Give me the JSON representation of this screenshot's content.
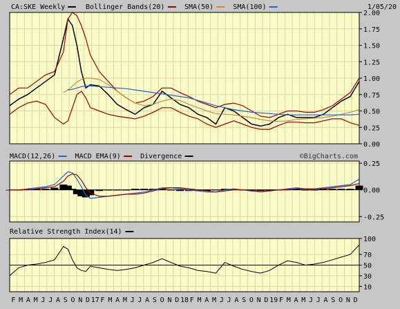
{
  "chart_data": [
    {
      "type": "line",
      "panel": "price",
      "title": "CA:SKE Weekly",
      "date": "1/05/20",
      "legend": [
        {
          "label": "Bollinger Bands(20)",
          "color": "#a00000"
        },
        {
          "label": "SMA(50)",
          "color": "#c09040"
        },
        {
          "label": "SMA(100)",
          "color": "#2060e0"
        }
      ],
      "x_range": [
        0,
        156
      ],
      "ylim": [
        0,
        2.0
      ],
      "y_ticks": [
        0,
        0.25,
        0.5,
        0.75,
        1.0,
        1.25,
        1.5,
        1.75,
        2.0
      ],
      "y_tick_labels": [
        "0.00",
        "0.25",
        "0.50",
        "0.75",
        "1.00",
        "1.25",
        "1.50",
        "1.75",
        "2.00"
      ],
      "grid": true,
      "x": [
        0,
        4,
        8,
        12,
        16,
        20,
        24,
        26,
        28,
        30,
        32,
        34,
        36,
        40,
        44,
        48,
        52,
        56,
        60,
        64,
        68,
        72,
        76,
        80,
        84,
        88,
        92,
        96,
        100,
        104,
        108,
        112,
        116,
        120,
        124,
        128,
        132,
        136,
        140,
        144,
        148,
        152,
        156
      ],
      "series": [
        {
          "name": "Price",
          "color": "#000000",
          "values": [
            0.58,
            0.68,
            0.75,
            0.85,
            0.95,
            1.05,
            1.6,
            1.9,
            1.8,
            1.5,
            1.1,
            0.85,
            0.9,
            0.88,
            0.75,
            0.6,
            0.52,
            0.45,
            0.55,
            0.6,
            0.8,
            0.7,
            0.6,
            0.55,
            0.45,
            0.4,
            0.3,
            0.55,
            0.5,
            0.4,
            0.3,
            0.27,
            0.3,
            0.4,
            0.45,
            0.4,
            0.4,
            0.4,
            0.45,
            0.55,
            0.65,
            0.72,
            0.95
          ]
        },
        {
          "name": "Upper Band",
          "color": "#a00000",
          "values": [
            0.75,
            0.85,
            0.85,
            0.95,
            1.05,
            1.1,
            1.4,
            1.9,
            2.0,
            1.95,
            1.8,
            1.6,
            1.35,
            1.1,
            0.95,
            0.8,
            0.7,
            0.62,
            0.65,
            0.72,
            0.85,
            0.85,
            0.78,
            0.72,
            0.65,
            0.6,
            0.55,
            0.6,
            0.62,
            0.58,
            0.5,
            0.42,
            0.4,
            0.45,
            0.5,
            0.5,
            0.48,
            0.48,
            0.52,
            0.58,
            0.68,
            0.78,
            1.0
          ]
        },
        {
          "name": "Lower Band",
          "color": "#a00000",
          "values": [
            0.45,
            0.55,
            0.62,
            0.65,
            0.6,
            0.4,
            0.3,
            0.35,
            0.55,
            0.75,
            0.8,
            0.7,
            0.55,
            0.5,
            0.45,
            0.42,
            0.4,
            0.38,
            0.42,
            0.48,
            0.55,
            0.55,
            0.48,
            0.42,
            0.38,
            0.3,
            0.25,
            0.3,
            0.35,
            0.3,
            0.25,
            0.22,
            0.22,
            0.28,
            0.33,
            0.33,
            0.32,
            0.32,
            0.35,
            0.38,
            0.38,
            0.32,
            0.28
          ]
        },
        {
          "name": "SMA(50)",
          "color": "#c09040",
          "values": [
            null,
            null,
            null,
            null,
            null,
            null,
            0.78,
            0.82,
            0.88,
            0.94,
            0.98,
            1.0,
            1.0,
            0.98,
            0.9,
            0.8,
            0.7,
            0.62,
            0.58,
            0.6,
            0.65,
            0.68,
            0.66,
            0.6,
            0.55,
            0.5,
            0.46,
            0.45,
            0.44,
            0.42,
            0.4,
            0.37,
            0.35,
            0.34,
            0.35,
            0.37,
            0.38,
            0.39,
            0.4,
            0.42,
            0.45,
            0.48,
            0.52
          ]
        },
        {
          "name": "SMA(100)",
          "color": "#2060e0",
          "values": [
            null,
            null,
            null,
            null,
            null,
            null,
            null,
            0.82,
            0.83,
            0.85,
            0.87,
            0.88,
            0.88,
            0.87,
            0.86,
            0.85,
            0.84,
            0.82,
            0.8,
            0.78,
            0.76,
            0.74,
            0.72,
            0.7,
            0.66,
            0.62,
            0.58,
            0.55,
            0.52,
            0.5,
            0.48,
            0.47,
            0.46,
            0.45,
            0.44,
            0.44,
            0.44,
            0.44,
            0.44,
            0.44,
            0.44,
            0.44,
            0.45
          ]
        }
      ]
    },
    {
      "type": "line",
      "panel": "macd",
      "legend": [
        {
          "label": "MACD(12,26)",
          "color": "#2060e0"
        },
        {
          "label": "MACD EMA(9)",
          "color": "#a00000"
        },
        {
          "label": "Divergence",
          "color": "#000000"
        }
      ],
      "watermark": "©BigCharts.com",
      "ylim": [
        -0.3,
        0.27
      ],
      "y_ticks": [
        0.25,
        0,
        -0.25
      ],
      "y_tick_labels": [
        "0.25",
        "0.00",
        "-0.25"
      ],
      "x": [
        0,
        4,
        8,
        12,
        16,
        20,
        24,
        26,
        28,
        30,
        32,
        34,
        36,
        40,
        44,
        48,
        52,
        56,
        60,
        64,
        68,
        72,
        76,
        80,
        84,
        88,
        92,
        96,
        100,
        104,
        108,
        112,
        116,
        120,
        124,
        128,
        132,
        136,
        140,
        144,
        148,
        152,
        156
      ],
      "series": [
        {
          "name": "MACD",
          "color": "#2060e0",
          "values": [
            0,
            0,
            0.01,
            0.02,
            0.03,
            0.05,
            0.13,
            0.17,
            0.16,
            0.1,
            0.03,
            -0.05,
            -0.08,
            -0.07,
            -0.06,
            -0.05,
            -0.04,
            -0.03,
            -0.02,
            0,
            0.02,
            0.02,
            0.01,
            0,
            -0.01,
            -0.02,
            -0.02,
            0,
            0.01,
            0,
            -0.01,
            -0.02,
            -0.01,
            0,
            0.01,
            0.02,
            0.01,
            0.01,
            0.02,
            0.03,
            0.04,
            0.05,
            0.1
          ]
        },
        {
          "name": "EMA",
          "color": "#a00000",
          "values": [
            0,
            0,
            0,
            0.01,
            0.02,
            0.03,
            0.08,
            0.13,
            0.15,
            0.14,
            0.09,
            0.02,
            -0.03,
            -0.06,
            -0.06,
            -0.05,
            -0.04,
            -0.04,
            -0.03,
            -0.01,
            0.01,
            0.02,
            0.02,
            0.01,
            0,
            -0.01,
            -0.02,
            -0.01,
            0,
            0,
            -0.01,
            -0.01,
            -0.01,
            0,
            0,
            0.01,
            0.01,
            0.01,
            0.01,
            0.02,
            0.03,
            0.04,
            0.06
          ]
        },
        {
          "name": "Divergence",
          "color": "#000000",
          "values": [
            0,
            0,
            0.01,
            0.01,
            0.01,
            0.02,
            0.05,
            0.04,
            0.01,
            -0.04,
            -0.06,
            -0.07,
            -0.05,
            -0.01,
            0,
            0,
            0,
            0.01,
            0.01,
            0.01,
            0.01,
            0,
            -0.01,
            -0.01,
            -0.01,
            -0.01,
            0,
            0.01,
            0.01,
            0,
            0,
            -0.01,
            0,
            0,
            0.01,
            0.01,
            0,
            0,
            0.01,
            0.01,
            0.01,
            0.01,
            0.04
          ]
        }
      ]
    },
    {
      "type": "line",
      "panel": "rsi",
      "legend": [
        {
          "label": "Relative Strength Index(14)",
          "color": "#000000"
        }
      ],
      "ylim": [
        0,
        100
      ],
      "y_ticks": [
        100,
        70,
        50,
        30,
        10
      ],
      "y_tick_labels": [
        "100",
        "70",
        "50",
        "30",
        "10"
      ],
      "reference_line": 50,
      "x": [
        0,
        4,
        8,
        12,
        16,
        20,
        24,
        26,
        28,
        30,
        32,
        34,
        36,
        40,
        44,
        48,
        52,
        56,
        60,
        64,
        68,
        72,
        76,
        80,
        84,
        88,
        92,
        96,
        100,
        104,
        108,
        112,
        116,
        120,
        124,
        128,
        132,
        136,
        140,
        144,
        148,
        152,
        156
      ],
      "series": [
        {
          "name": "RSI",
          "color": "#000000",
          "values": [
            30,
            45,
            50,
            52,
            55,
            60,
            85,
            80,
            60,
            45,
            40,
            38,
            48,
            45,
            42,
            40,
            42,
            45,
            50,
            55,
            62,
            55,
            48,
            45,
            40,
            38,
            35,
            55,
            48,
            42,
            38,
            35,
            40,
            50,
            58,
            55,
            50,
            52,
            55,
            60,
            65,
            70,
            88
          ]
        }
      ]
    }
  ],
  "x_axis": {
    "labels": [
      "F",
      "M",
      "A",
      "M",
      "J",
      "J",
      "A",
      "S",
      "O",
      "N",
      "D",
      "17",
      "F",
      "M",
      "A",
      "M",
      "J",
      "J",
      "A",
      "S",
      "O",
      "N",
      "D",
      "18",
      "F",
      "M",
      "A",
      "M",
      "J",
      "J",
      "A",
      "S",
      "O",
      "N",
      "D",
      "19",
      "F",
      "M",
      "A",
      "M",
      "J",
      "J",
      "A",
      "S",
      "O",
      "N",
      "D"
    ]
  }
}
